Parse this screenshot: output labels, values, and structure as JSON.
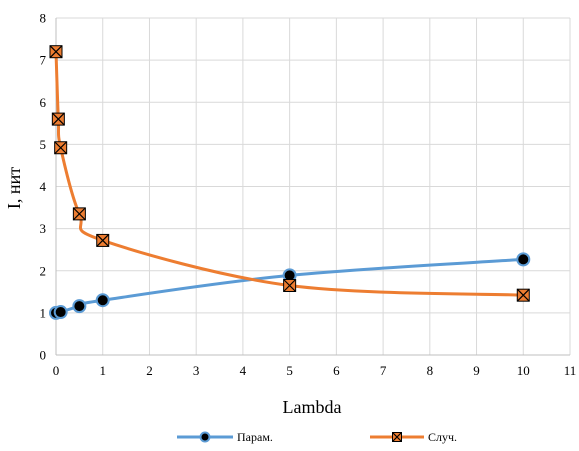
{
  "chart_data": {
    "type": "line",
    "title": "",
    "xlabel": "Lambda",
    "ylabel": "I, нит",
    "xlim": [
      0,
      11
    ],
    "ylim": [
      0,
      8
    ],
    "xticks": [
      0,
      1,
      2,
      3,
      4,
      5,
      6,
      7,
      8,
      9,
      10,
      11
    ],
    "yticks": [
      0,
      1,
      2,
      3,
      4,
      5,
      6,
      7,
      8
    ],
    "grid": true,
    "smooth": true,
    "legend_position": "bottom",
    "series": [
      {
        "name": "Парам.",
        "color": "#5B9BD5",
        "marker": "circle",
        "x": [
          0,
          0.1,
          0.5,
          1,
          5,
          10
        ],
        "y": [
          1.0,
          1.02,
          1.16,
          1.3,
          1.89,
          2.27
        ]
      },
      {
        "name": "Случ.",
        "color": "#ED7D31",
        "marker": "x-square",
        "x": [
          0,
          0.05,
          0.1,
          0.5,
          1,
          5,
          10
        ],
        "y": [
          7.2,
          5.6,
          4.92,
          3.35,
          2.72,
          1.65,
          1.42
        ]
      }
    ]
  }
}
